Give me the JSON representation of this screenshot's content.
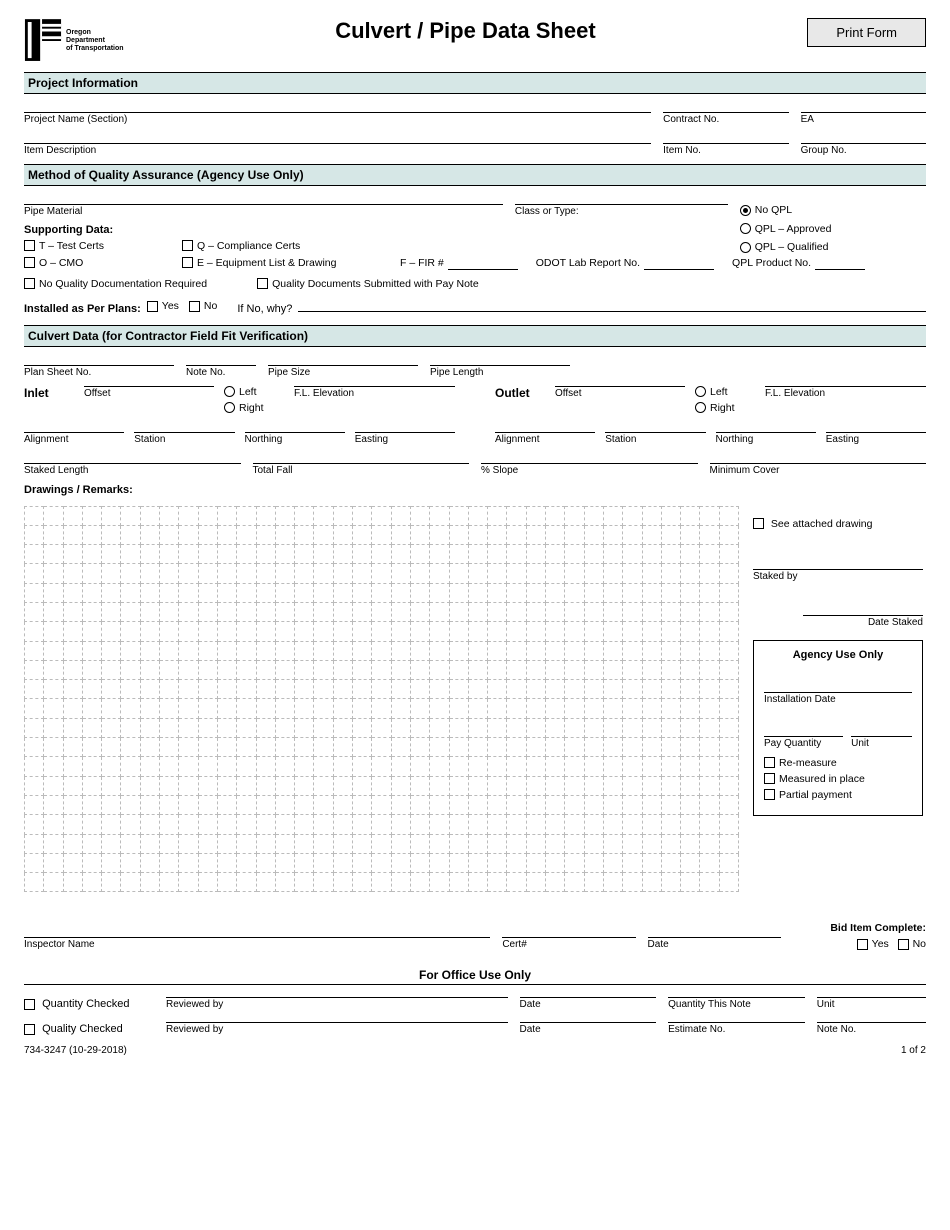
{
  "header": {
    "logo_text": "Oregon\nDepartment\nof Transportation",
    "title": "Culvert / Pipe Data Sheet",
    "print_btn": "Print Form"
  },
  "sections": {
    "project_info": "Project Information",
    "qa": "Method of Quality Assurance (Agency Use Only)",
    "culvert": "Culvert Data (for Contractor Field Fit Verification)"
  },
  "project": {
    "name": "Project Name (Section)",
    "contract": "Contract No.",
    "ea": "EA",
    "item_desc": "Item Description",
    "item_no": "Item No.",
    "group_no": "Group No."
  },
  "qa": {
    "pipe_material": "Pipe Material",
    "class_type": "Class or Type:",
    "supporting_data": "Supporting Data:",
    "t_test": "T – Test Certs",
    "q_comp": "Q – Compliance Certs",
    "o_cmo": "O – CMO",
    "e_equip": "E – Equipment List & Drawing",
    "f_fir": "F – FIR #",
    "odot_lab": "ODOT Lab Report No.",
    "qpl_product": "QPL Product No.",
    "no_qpl": "No QPL",
    "qpl_approved": "QPL – Approved",
    "qpl_qualified": "QPL – Qualified",
    "no_qd": "No Quality Documentation Required",
    "qd_submitted": "Quality Documents Submitted with Pay Note",
    "installed": "Installed as Per Plans:",
    "yes": "Yes",
    "no": "No",
    "if_no": "If No, why?"
  },
  "culvert": {
    "plan_sheet": "Plan Sheet No.",
    "note_no": "Note  No.",
    "pipe_size": "Pipe Size",
    "pipe_length": "Pipe Length",
    "inlet": "Inlet",
    "outlet": "Outlet",
    "left": "Left",
    "right": "Right",
    "offset": "Offset",
    "fl_elev": "F.L. Elevation",
    "alignment": "Alignment",
    "station": "Station",
    "northing": "Northing",
    "easting": "Easting",
    "staked_length": "Staked Length",
    "total_fall": "Total Fall",
    "pct_slope": "% Slope",
    "min_cover": "Minimum Cover",
    "drawings": "Drawings / Remarks:"
  },
  "side": {
    "see_attached": "See attached drawing",
    "staked_by": "Staked by",
    "date_staked": "Date Staked",
    "agency_only": "Agency Use Only",
    "install_date": "Installation Date",
    "pay_qty": "Pay Quantity",
    "unit": "Unit",
    "remeasure": "Re-measure",
    "measured": "Measured in place",
    "partial": "Partial payment"
  },
  "signoff": {
    "bid_complete": "Bid Item Complete:",
    "inspector": "Inspector Name",
    "cert": "Cert#",
    "date": "Date",
    "yes": "Yes",
    "no": "No"
  },
  "office": {
    "heading": "For Office Use Only",
    "qty_checked": "Quantity Checked",
    "qual_checked": "Quality Checked",
    "reviewed_by": "Reviewed by",
    "date": "Date",
    "qty_this_note": "Quantity This Note",
    "unit": "Unit",
    "estimate_no": "Estimate No.",
    "note_no": "Note No."
  },
  "footer": {
    "form_no": "734-3247 (10-29-2018)",
    "page": "1 of 2"
  },
  "grid": {
    "rows": 20,
    "cols": 37
  }
}
